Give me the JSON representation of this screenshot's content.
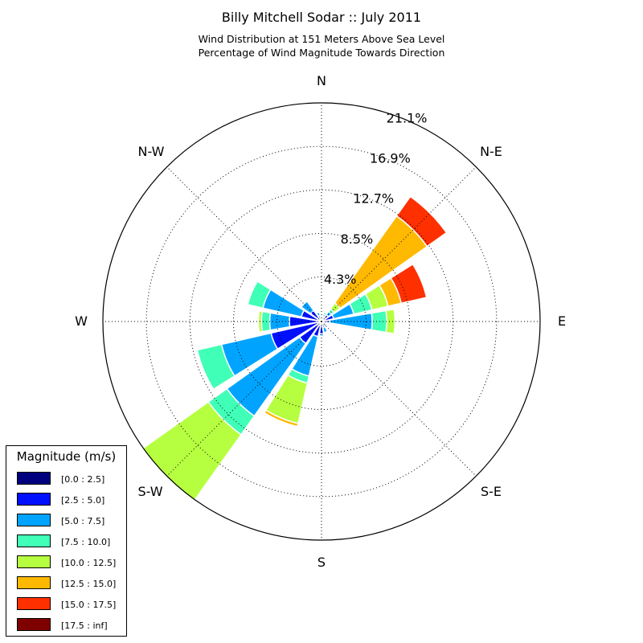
{
  "title": "Billy Mitchell Sodar :: July 2011",
  "subtitle_line1": "Wind Distribution at 151 Meters Above Sea Level",
  "subtitle_line2": "Percentage of Wind Magnitude Towards Direction",
  "direction_labels": {
    "N": "N",
    "NE": "N-E",
    "E": "E",
    "SE": "S-E",
    "S": "S",
    "SW": "S-W",
    "W": "W",
    "NW": "N-W"
  },
  "legend": {
    "title": "Magnitude (m/s)",
    "items": [
      {
        "label": "[0.0 : 2.5]",
        "color": "#00007f"
      },
      {
        "label": "[2.5 : 5.0]",
        "color": "#0010ff"
      },
      {
        "label": "[5.0 : 7.5]",
        "color": "#00a4ff"
      },
      {
        "label": "[7.5 : 10.0]",
        "color": "#40ffb6"
      },
      {
        "label": "[10.0 : 12.5]",
        "color": "#b6ff40"
      },
      {
        "label": "[12.5 : 15.0]",
        "color": "#ffb900"
      },
      {
        "label": "[15.0 : 17.5]",
        "color": "#ff3000"
      },
      {
        "label": "[17.5 : inf]",
        "color": "#7f0000"
      }
    ]
  },
  "chart_data": {
    "type": "windrose",
    "title": "Billy Mitchell Sodar :: July 2011",
    "radial_ticks": [
      4.3,
      8.5,
      12.7,
      16.9,
      21.1
    ],
    "radial_tick_labels": [
      "4.3%",
      "8.5%",
      "12.7%",
      "16.9%",
      "21.1%"
    ],
    "rmax": 21.1,
    "bin_labels": [
      "[0.0 : 2.5]",
      "[2.5 : 5.0]",
      "[5.0 : 7.5]",
      "[7.5 : 10.0]",
      "[10.0 : 12.5]",
      "[12.5 : 15.0]",
      "[15.0 : 17.5]",
      "[17.5 : inf]"
    ],
    "directions": [
      {
        "angle": 0.0,
        "cumulative": [
          0.2,
          0.3,
          0.4,
          0.5
        ]
      },
      {
        "angle": 22.5,
        "cumulative": [
          0.3,
          0.5,
          0.7,
          0.9
        ]
      },
      {
        "angle": 45.0,
        "cumulative": [
          0.4,
          0.8,
          1.2,
          1.5,
          2.2,
          12.5,
          14.8
        ]
      },
      {
        "angle": 67.5,
        "cumulative": [
          0.4,
          1.2,
          3.2,
          5.0,
          6.6,
          7.9,
          10.4
        ]
      },
      {
        "angle": 90.0,
        "cumulative": [
          0.3,
          0.8,
          4.9,
          6.3,
          7.1
        ]
      },
      {
        "angle": 112.5,
        "cumulative": [
          0.2,
          0.5,
          0.6
        ]
      },
      {
        "angle": 135.0,
        "cumulative": [
          0.3,
          0.6
        ]
      },
      {
        "angle": 157.5,
        "cumulative": [
          0.3,
          0.6,
          1.1
        ]
      },
      {
        "angle": 180.0,
        "cumulative": [
          0.3,
          1.2,
          1.4
        ]
      },
      {
        "angle": 202.5,
        "cumulative": [
          0.4,
          1.5,
          5.4,
          6.1,
          10.1,
          10.4
        ]
      },
      {
        "angle": 225.0,
        "cumulative": [
          0.4,
          2.6,
          11.2,
          13.4,
          21.2
        ]
      },
      {
        "angle": 247.5,
        "cumulative": [
          0.4,
          5.0,
          9.9,
          12.3
        ]
      },
      {
        "angle": 270.0,
        "cumulative": [
          0.4,
          3.1,
          5.0,
          5.8,
          6.1
        ]
      },
      {
        "angle": 292.5,
        "cumulative": [
          0.4,
          2.0,
          5.8,
          7.3
        ]
      },
      {
        "angle": 315.0,
        "cumulative": [
          0.3,
          1.3,
          2.4
        ]
      },
      {
        "angle": 337.5,
        "cumulative": [
          0.2,
          0.6,
          0.9
        ]
      }
    ]
  }
}
